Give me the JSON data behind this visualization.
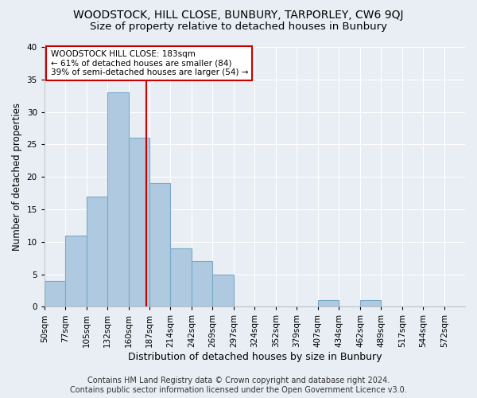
{
  "title": "WOODSTOCK, HILL CLOSE, BUNBURY, TARPORLEY, CW6 9QJ",
  "subtitle": "Size of property relative to detached houses in Bunbury",
  "xlabel": "Distribution of detached houses by size in Bunbury",
  "ylabel": "Number of detached properties",
  "bins": [
    50,
    77,
    105,
    132,
    160,
    187,
    214,
    242,
    269,
    297,
    324,
    352,
    379,
    407,
    434,
    462,
    489,
    517,
    544,
    572,
    599
  ],
  "counts": [
    4,
    11,
    17,
    33,
    26,
    19,
    9,
    7,
    5,
    0,
    0,
    0,
    0,
    1,
    0,
    1,
    0,
    0,
    0,
    0
  ],
  "bar_color": "#aec9e0",
  "bar_edge_color": "#7aaac8",
  "vline_x": 183,
  "vline_color": "#cc0000",
  "annotation_text": "WOODSTOCK HILL CLOSE: 183sqm\n← 61% of detached houses are smaller (84)\n39% of semi-detached houses are larger (54) →",
  "annotation_box_color": "white",
  "annotation_box_edge_color": "#cc0000",
  "ylim": [
    0,
    40
  ],
  "yticks": [
    0,
    5,
    10,
    15,
    20,
    25,
    30,
    35,
    40
  ],
  "background_color": "#e8eef4",
  "grid_color": "white",
  "footer_line1": "Contains HM Land Registry data © Crown copyright and database right 2024.",
  "footer_line2": "Contains public sector information licensed under the Open Government Licence v3.0.",
  "title_fontsize": 10,
  "subtitle_fontsize": 9.5,
  "xlabel_fontsize": 9,
  "ylabel_fontsize": 8.5,
  "tick_fontsize": 7.5,
  "annotation_fontsize": 7.5,
  "footer_fontsize": 7
}
